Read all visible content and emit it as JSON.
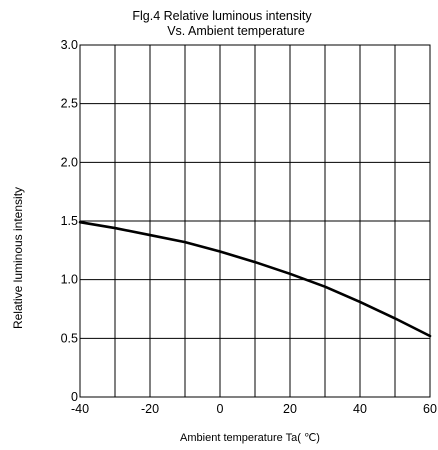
{
  "chart_data": {
    "type": "line",
    "title": [
      "Flg.4 Relative luminous intensity",
      "Vs. Ambient temperature"
    ],
    "xlabel": "Ambient temperature Ta( ℃)",
    "ylabel": "Relative luminous intensity",
    "xlim": [
      -40,
      60
    ],
    "ylim": [
      0,
      3.0
    ],
    "x_gridlines": [
      -40,
      -30,
      -20,
      -10,
      0,
      10,
      20,
      30,
      40,
      50,
      60
    ],
    "y_gridlines": [
      0,
      0.5,
      1.0,
      1.5,
      2.0,
      2.5,
      3.0
    ],
    "x_tick_labels": [
      {
        "value": -40,
        "label": "-40"
      },
      {
        "value": -20,
        "label": "-20"
      },
      {
        "value": 0,
        "label": "0"
      },
      {
        "value": 20,
        "label": "20"
      },
      {
        "value": 40,
        "label": "40"
      },
      {
        "value": 60,
        "label": "60"
      }
    ],
    "y_tick_labels": [
      {
        "value": 0,
        "label": "0"
      },
      {
        "value": 0.5,
        "label": "0.5"
      },
      {
        "value": 1.0,
        "label": "1.0"
      },
      {
        "value": 1.5,
        "label": "1.5"
      },
      {
        "value": 2.0,
        "label": "2.0"
      },
      {
        "value": 2.5,
        "label": "2.5"
      },
      {
        "value": 3.0,
        "label": "3.0"
      }
    ],
    "grid": true,
    "series": [
      {
        "color": "#000000",
        "x": [
          -40,
          -30,
          -20,
          -10,
          0,
          10,
          20,
          30,
          40,
          50,
          60
        ],
        "y": [
          1.49,
          1.44,
          1.38,
          1.32,
          1.24,
          1.15,
          1.05,
          0.94,
          0.81,
          0.67,
          0.52
        ]
      }
    ]
  }
}
